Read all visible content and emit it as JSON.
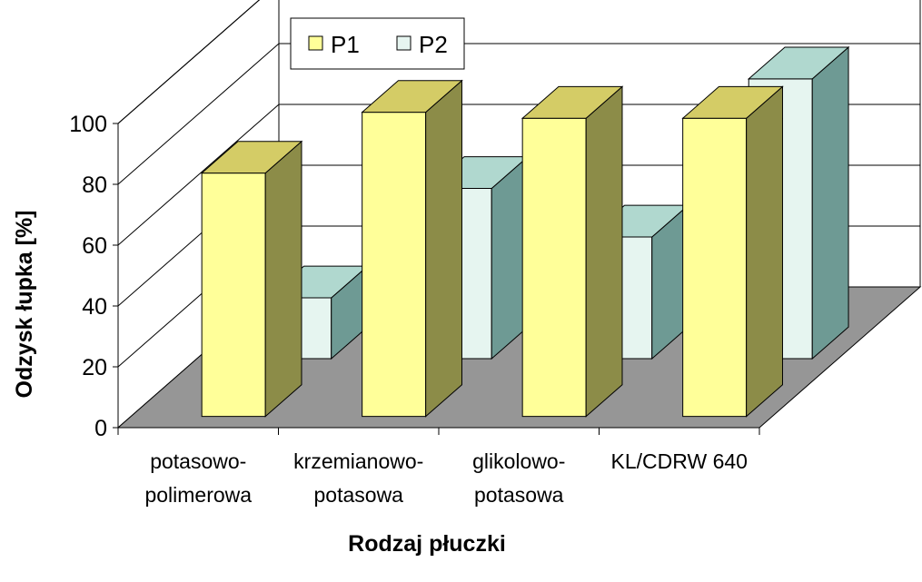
{
  "chart_data": {
    "type": "bar",
    "variant": "3d-clustered",
    "categories": [
      [
        "potasowo-",
        "polimerowa"
      ],
      [
        "krzemianowo-",
        "potasowa"
      ],
      [
        "glikolowo-",
        "potasowa"
      ],
      [
        "KL/CDRW 640"
      ]
    ],
    "series": [
      {
        "name": "P1",
        "values": [
          80,
          100,
          98,
          98
        ],
        "color": "#FFFF99",
        "top_color": "#D4CC66",
        "side_color": "#8C8C48"
      },
      {
        "name": "P2",
        "values": [
          20,
          56,
          40,
          92
        ],
        "color": "#E6F5F0",
        "top_color": "#B0D8CF",
        "side_color": "#6E9A94"
      }
    ],
    "xlabel": "Rodzaj płuczki",
    "ylabel": "Odzysk łupka [%]",
    "ylim": [
      0,
      100
    ],
    "yticks": [
      0,
      20,
      40,
      60,
      80,
      100
    ],
    "grid": true,
    "legend": "top-center",
    "floor_color": "#969696"
  }
}
